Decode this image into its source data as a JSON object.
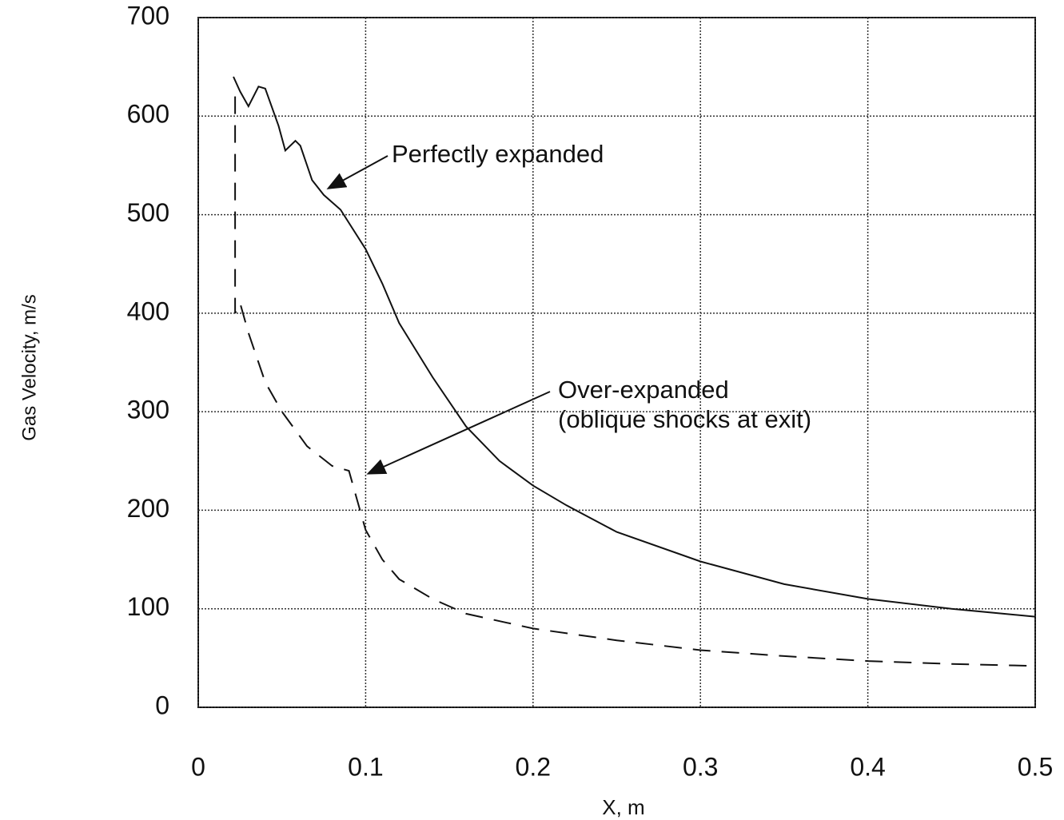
{
  "chart_data": {
    "type": "line",
    "x_label": "X, m",
    "y_label": "Gas Velocity, m/s",
    "xlim": [
      0,
      0.5
    ],
    "ylim": [
      0,
      700
    ],
    "xticks": [
      0,
      0.1,
      0.2,
      0.3,
      0.4,
      0.5
    ],
    "yticks": [
      0,
      100,
      200,
      300,
      400,
      500,
      600,
      700
    ],
    "grid": true,
    "series": [
      {
        "name": "Perfectly expanded",
        "color": "#111111",
        "line_style": "solid",
        "x": [
          0.021,
          0.025,
          0.03,
          0.036,
          0.04,
          0.048,
          0.052,
          0.058,
          0.061,
          0.068,
          0.075,
          0.085,
          0.1,
          0.11,
          0.12,
          0.14,
          0.16,
          0.18,
          0.2,
          0.22,
          0.25,
          0.3,
          0.35,
          0.4,
          0.45,
          0.5
        ],
        "values": [
          640,
          625,
          610,
          630,
          628,
          590,
          565,
          575,
          570,
          535,
          520,
          505,
          465,
          430,
          390,
          335,
          285,
          250,
          225,
          205,
          178,
          148,
          125,
          110,
          100,
          92
        ]
      },
      {
        "name": "Over-expanded",
        "color": "#111111",
        "line_style": "dashed",
        "x": [
          0.022,
          0.022,
          0.025,
          0.03,
          0.04,
          0.05,
          0.065,
          0.08,
          0.09,
          0.095,
          0.1,
          0.11,
          0.12,
          0.14,
          0.16,
          0.2,
          0.25,
          0.3,
          0.35,
          0.4,
          0.45,
          0.5
        ],
        "values": [
          620,
          400,
          410,
          380,
          330,
          300,
          265,
          245,
          240,
          210,
          180,
          150,
          130,
          110,
          95,
          80,
          68,
          58,
          52,
          47,
          44,
          42
        ]
      }
    ],
    "annotations": [
      "(oblique shocks at exit)"
    ]
  }
}
